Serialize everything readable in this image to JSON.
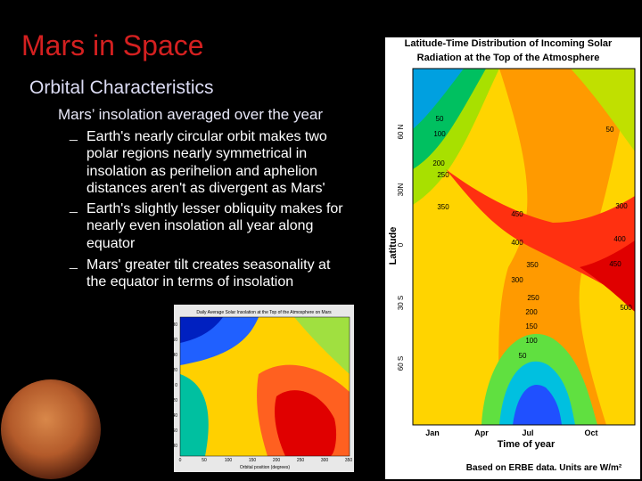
{
  "slide": {
    "title": "Mars in Space",
    "subtitle": "Orbital Characteristics",
    "heading": "Mars’ insolation averaged over the year",
    "bullet_marker": "_",
    "bullets": [
      [
        "Earth's nearly circular orbit makes two",
        "polar regions nearly symmetrical in",
        "insolation as perihelion and aphelion",
        "distances aren't as divergent as Mars'"
      ],
      [
        "Earth's slightly lesser obliquity makes for",
        "nearly even insolation all year along",
        "equator"
      ],
      [
        "Mars' greater tilt creates seasonality at",
        "the equator in terms of insolation"
      ]
    ]
  },
  "earth_figure": {
    "title_lines": [
      "Latitude-Time Distribution of Incoming Solar",
      "Radiation at the Top of the Atmosphere"
    ],
    "y_label": "Latitude",
    "y_ticks": [
      "60 N",
      "30N",
      "0",
      "30 S",
      "60 S"
    ],
    "x_label": "Time of year",
    "x_ticks": [
      "Jan",
      "Apr",
      "Jul",
      "Oct"
    ],
    "contour_labels": [
      "50",
      "100",
      "50",
      "200",
      "250",
      "350",
      "450",
      "300",
      "400",
      "400",
      "350",
      "450",
      "300",
      "250",
      "200",
      "150",
      "100",
      "50",
      "500"
    ],
    "footnote": "Based on ERBE data. Units are W/m²"
  },
  "mars_figure": {
    "title": "Daily Average Solar Insolation at the Top of the Atmosphere on Mars",
    "y_label": "Latitude (degrees)",
    "x_label": "Orbital position (degrees)",
    "x_ticks": [
      "0",
      "50",
      "100",
      "150",
      "200",
      "250",
      "300",
      "350"
    ],
    "y_ticks": [
      "80",
      "60",
      "40",
      "20",
      "0",
      "-20",
      "-40",
      "-60",
      "-80"
    ]
  }
}
